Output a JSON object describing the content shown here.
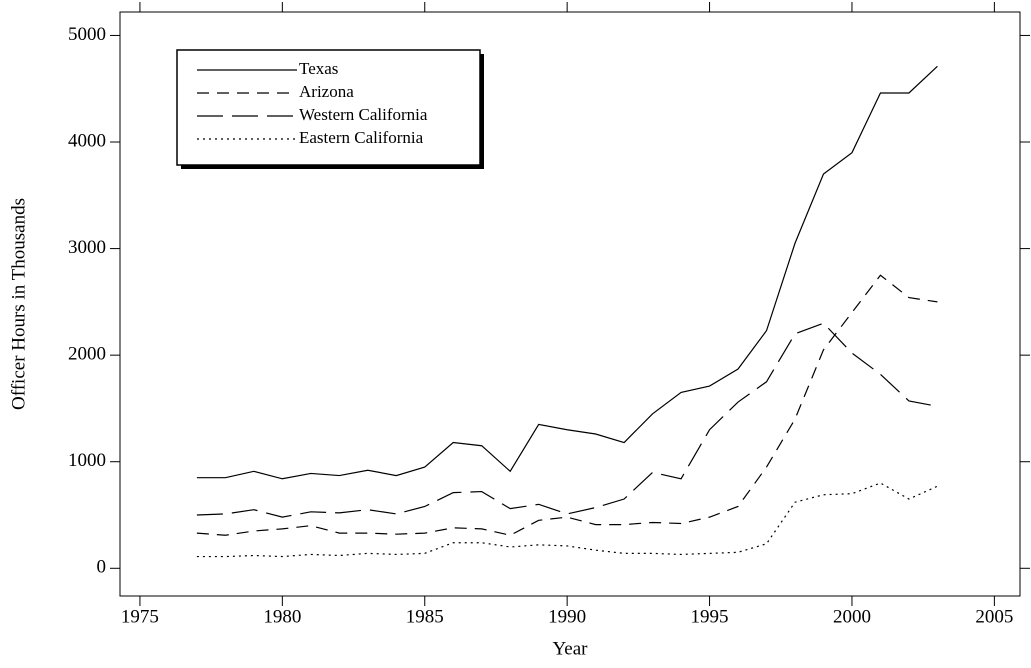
{
  "chart_data": {
    "type": "line",
    "x_label": "Year",
    "y_label": "Officer Hours in Thousands",
    "x": [
      1977,
      1978,
      1979,
      1980,
      1981,
      1982,
      1983,
      1984,
      1985,
      1986,
      1987,
      1988,
      1989,
      1990,
      1991,
      1992,
      1993,
      1994,
      1995,
      1996,
      1997,
      1998,
      1999,
      2000,
      2001,
      2002,
      2003
    ],
    "series": [
      {
        "name": "Texas",
        "color": "#000000",
        "dash": "none",
        "values": [
          850,
          850,
          910,
          840,
          890,
          870,
          920,
          870,
          950,
          1180,
          1150,
          910,
          1350,
          1300,
          1260,
          1180,
          1450,
          1650,
          1710,
          1870,
          2230,
          3050,
          3700,
          3900,
          4460,
          4460,
          4710
        ]
      },
      {
        "name": "Arizona",
        "color": "#000000",
        "dash": "12 8",
        "values": [
          330,
          310,
          350,
          370,
          400,
          330,
          330,
          320,
          330,
          380,
          370,
          310,
          450,
          480,
          410,
          410,
          430,
          420,
          480,
          580,
          950,
          1400,
          2050,
          2400,
          2750,
          2540,
          2500
        ]
      },
      {
        "name": "Western California",
        "color": "#000000",
        "dash": "26 9",
        "values": [
          500,
          510,
          550,
          480,
          530,
          520,
          550,
          510,
          580,
          710,
          720,
          560,
          600,
          510,
          570,
          650,
          900,
          840,
          1300,
          1560,
          1750,
          2200,
          2300,
          2020,
          1820,
          1570,
          1520
        ]
      },
      {
        "name": "Eastern California",
        "color": "#000000",
        "dash": "2 4",
        "values": [
          110,
          110,
          120,
          110,
          130,
          120,
          140,
          130,
          140,
          240,
          240,
          200,
          220,
          210,
          170,
          140,
          140,
          130,
          140,
          150,
          230,
          620,
          690,
          700,
          800,
          650,
          770
        ]
      }
    ],
    "xlim": [
      1974.3,
      2005.9
    ],
    "xticks": [
      1975,
      1980,
      1985,
      1990,
      1995,
      2000,
      2005
    ],
    "ylim": [
      -260,
      5220
    ],
    "yticks": [
      0,
      1000,
      2000,
      3000,
      4000,
      5000
    ],
    "legend": "upper left",
    "grid": false
  }
}
